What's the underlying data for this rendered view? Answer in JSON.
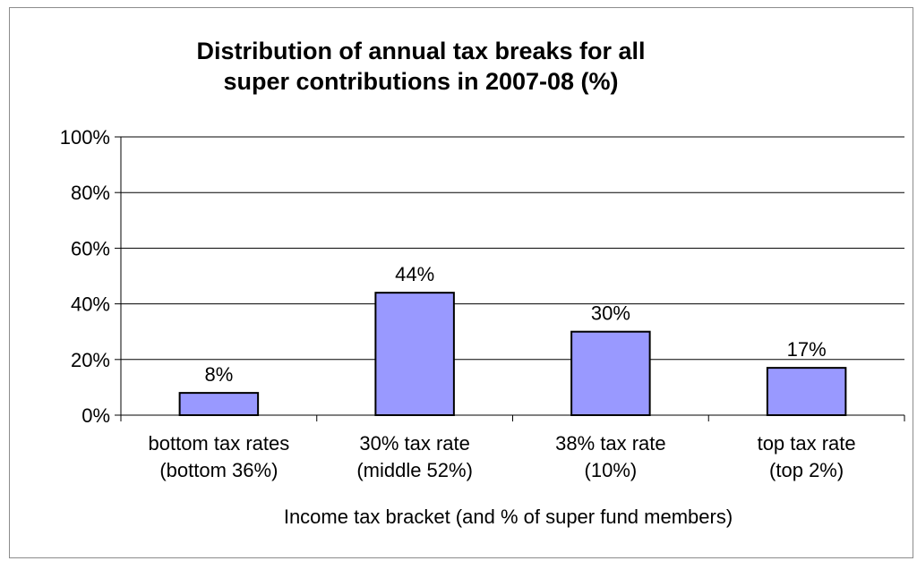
{
  "chart_data": {
    "type": "bar",
    "title_lines": [
      "Distribution of annual tax breaks for all",
      "super contributions in 2007-08 (%)"
    ],
    "categories": [
      [
        "bottom tax rates",
        "(bottom 36%)"
      ],
      [
        "30% tax rate",
        "(middle 52%)"
      ],
      [
        "38% tax rate",
        "(10%)"
      ],
      [
        "top tax rate",
        "(top 2%)"
      ]
    ],
    "values": [
      8,
      44,
      30,
      17
    ],
    "data_labels": [
      "8%",
      "44%",
      "30%",
      "17%"
    ],
    "xlabel": "Income tax bracket (and % of super fund members)",
    "ylabel": "",
    "ylim": [
      0,
      100
    ],
    "yticks": [
      0,
      20,
      40,
      60,
      80,
      100
    ],
    "ytick_labels": [
      "0%",
      "20%",
      "40%",
      "60%",
      "80%",
      "100%"
    ],
    "grid": true,
    "legend": "none",
    "colors": {
      "bar_fill": "#9999ff",
      "bar_stroke": "#000000",
      "grid": "#000000"
    }
  }
}
